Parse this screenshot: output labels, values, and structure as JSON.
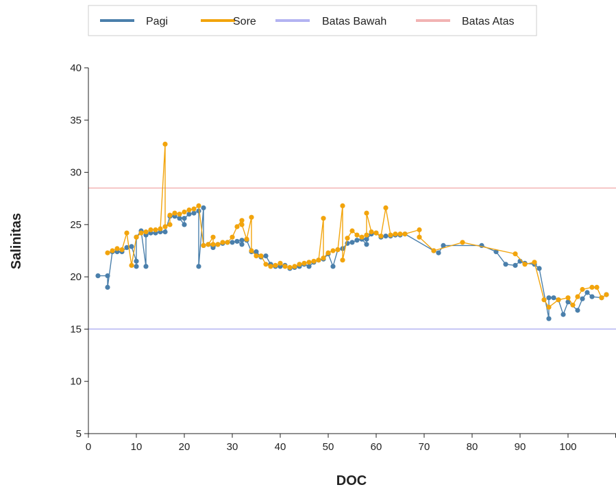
{
  "chart_data": {
    "type": "line",
    "title": "",
    "xlabel": "DOC",
    "ylabel": "Salinitas",
    "xlim": [
      0,
      110
    ],
    "ylim": [
      5,
      40
    ],
    "x_ticks": [
      0,
      10,
      20,
      30,
      40,
      50,
      60,
      70,
      80,
      90,
      100
    ],
    "y_ticks": [
      5,
      10,
      15,
      20,
      25,
      30,
      35,
      40
    ],
    "grid": false,
    "legend_position": "top",
    "reference_lines": [
      {
        "name": "Batas Bawah",
        "value": 15,
        "color": "#b3b3f2"
      },
      {
        "name": "Batas Atas",
        "value": 28.5,
        "color": "#f2b3b3"
      }
    ],
    "series": [
      {
        "name": "Pagi",
        "color": "#4a7fab",
        "points": [
          [
            2,
            20.1
          ],
          [
            4,
            20.1
          ],
          [
            4,
            19.0
          ],
          [
            5,
            22.4
          ],
          [
            6,
            22.4
          ],
          [
            7,
            22.4
          ],
          [
            8,
            22.8
          ],
          [
            9,
            22.9
          ],
          [
            10,
            21.5
          ],
          [
            10,
            21.0
          ],
          [
            10,
            23.8
          ],
          [
            11,
            24.4
          ],
          [
            12,
            21.0
          ],
          [
            12,
            24.0
          ],
          [
            13,
            24.2
          ],
          [
            14,
            24.2
          ],
          [
            15,
            24.3
          ],
          [
            16,
            24.3
          ],
          [
            17,
            25.8
          ],
          [
            18,
            25.8
          ],
          [
            19,
            25.6
          ],
          [
            20,
            25.0
          ],
          [
            20,
            25.6
          ],
          [
            21,
            26.0
          ],
          [
            22,
            26.1
          ],
          [
            23,
            26.3
          ],
          [
            23,
            21.0
          ],
          [
            24,
            26.6
          ],
          [
            24,
            23.0
          ],
          [
            25,
            23.1
          ],
          [
            26,
            22.8
          ],
          [
            27,
            23.1
          ],
          [
            28,
            23.2
          ],
          [
            29,
            23.3
          ],
          [
            30,
            23.3
          ],
          [
            31,
            23.4
          ],
          [
            32,
            23.1
          ],
          [
            32,
            23.5
          ],
          [
            33,
            23.5
          ],
          [
            34,
            22.4
          ],
          [
            35,
            22.4
          ],
          [
            36,
            21.9
          ],
          [
            37,
            22.0
          ],
          [
            38,
            21.2
          ],
          [
            39,
            21.0
          ],
          [
            40,
            21.0
          ],
          [
            41,
            21.1
          ],
          [
            42,
            20.8
          ],
          [
            43,
            20.9
          ],
          [
            44,
            21.0
          ],
          [
            45,
            21.2
          ],
          [
            46,
            21.0
          ],
          [
            47,
            21.4
          ],
          [
            48,
            21.6
          ],
          [
            49,
            21.7
          ],
          [
            50,
            22.2
          ],
          [
            51,
            21.0
          ],
          [
            52,
            22.6
          ],
          [
            53,
            22.7
          ],
          [
            54,
            23.2
          ],
          [
            55,
            23.3
          ],
          [
            56,
            23.5
          ],
          [
            57,
            23.6
          ],
          [
            58,
            23.1
          ],
          [
            58,
            23.6
          ],
          [
            59,
            24.1
          ],
          [
            60,
            24.2
          ],
          [
            61,
            23.8
          ],
          [
            62,
            23.9
          ],
          [
            63,
            23.9
          ],
          [
            64,
            24.0
          ],
          [
            65,
            24.0
          ],
          [
            66,
            24.1
          ],
          [
            72,
            22.5
          ],
          [
            73,
            22.3
          ],
          [
            74,
            23.0
          ],
          [
            82,
            23.0
          ],
          [
            85,
            22.4
          ],
          [
            87,
            21.2
          ],
          [
            89,
            21.1
          ],
          [
            90,
            21.5
          ],
          [
            91,
            21.3
          ],
          [
            93,
            21.2
          ],
          [
            94,
            20.8
          ],
          [
            96,
            16.0
          ],
          [
            96,
            18.0
          ],
          [
            97,
            18.0
          ],
          [
            98,
            17.8
          ],
          [
            99,
            16.4
          ],
          [
            100,
            17.6
          ],
          [
            102,
            16.8
          ],
          [
            103,
            17.9
          ],
          [
            104,
            18.5
          ],
          [
            105,
            18.1
          ],
          [
            107,
            18.0
          ],
          [
            108,
            18.3
          ]
        ]
      },
      {
        "name": "Sore",
        "color": "#f2a40c",
        "points": [
          [
            4,
            22.3
          ],
          [
            5,
            22.5
          ],
          [
            6,
            22.7
          ],
          [
            7,
            22.6
          ],
          [
            8,
            24.2
          ],
          [
            9,
            21.1
          ],
          [
            10,
            23.8
          ],
          [
            11,
            24.2
          ],
          [
            12,
            24.3
          ],
          [
            13,
            24.5
          ],
          [
            14,
            24.5
          ],
          [
            15,
            24.6
          ],
          [
            16,
            32.7
          ],
          [
            16,
            24.8
          ],
          [
            17,
            25.0
          ],
          [
            17,
            25.9
          ],
          [
            18,
            26.1
          ],
          [
            19,
            26.0
          ],
          [
            20,
            26.2
          ],
          [
            21,
            26.4
          ],
          [
            22,
            26.5
          ],
          [
            23,
            26.8
          ],
          [
            24,
            23.0
          ],
          [
            25,
            23.1
          ],
          [
            26,
            23.8
          ],
          [
            26,
            23.1
          ],
          [
            27,
            23.1
          ],
          [
            28,
            23.3
          ],
          [
            29,
            23.3
          ],
          [
            30,
            23.8
          ],
          [
            31,
            24.8
          ],
          [
            32,
            25.4
          ],
          [
            32,
            25.0
          ],
          [
            33,
            23.6
          ],
          [
            34,
            25.7
          ],
          [
            34,
            22.5
          ],
          [
            35,
            22.0
          ],
          [
            36,
            22.0
          ],
          [
            37,
            21.2
          ],
          [
            38,
            21.0
          ],
          [
            39,
            21.1
          ],
          [
            40,
            21.3
          ],
          [
            41,
            21.0
          ],
          [
            42,
            20.9
          ],
          [
            43,
            21.0
          ],
          [
            44,
            21.2
          ],
          [
            45,
            21.3
          ],
          [
            46,
            21.4
          ],
          [
            47,
            21.5
          ],
          [
            48,
            21.6
          ],
          [
            49,
            25.6
          ],
          [
            49,
            21.8
          ],
          [
            50,
            22.3
          ],
          [
            51,
            22.5
          ],
          [
            52,
            22.6
          ],
          [
            53,
            26.8
          ],
          [
            53,
            21.6
          ],
          [
            54,
            23.7
          ],
          [
            55,
            24.4
          ],
          [
            56,
            24.0
          ],
          [
            57,
            23.8
          ],
          [
            58,
            24.0
          ],
          [
            58,
            26.1
          ],
          [
            59,
            24.3
          ],
          [
            60,
            24.2
          ],
          [
            61,
            23.9
          ],
          [
            62,
            26.6
          ],
          [
            63,
            24.0
          ],
          [
            64,
            24.1
          ],
          [
            65,
            24.1
          ],
          [
            66,
            24.1
          ],
          [
            69,
            24.5
          ],
          [
            69,
            23.8
          ],
          [
            72,
            22.5
          ],
          [
            78,
            23.3
          ],
          [
            89,
            22.2
          ],
          [
            91,
            21.2
          ],
          [
            93,
            21.4
          ],
          [
            95,
            17.8
          ],
          [
            96,
            17.1
          ],
          [
            98,
            17.8
          ],
          [
            100,
            18.0
          ],
          [
            101,
            17.3
          ],
          [
            102,
            18.1
          ],
          [
            103,
            18.8
          ],
          [
            105,
            19.0
          ],
          [
            106,
            19.0
          ],
          [
            107,
            18.0
          ],
          [
            108,
            18.3
          ]
        ]
      }
    ]
  }
}
